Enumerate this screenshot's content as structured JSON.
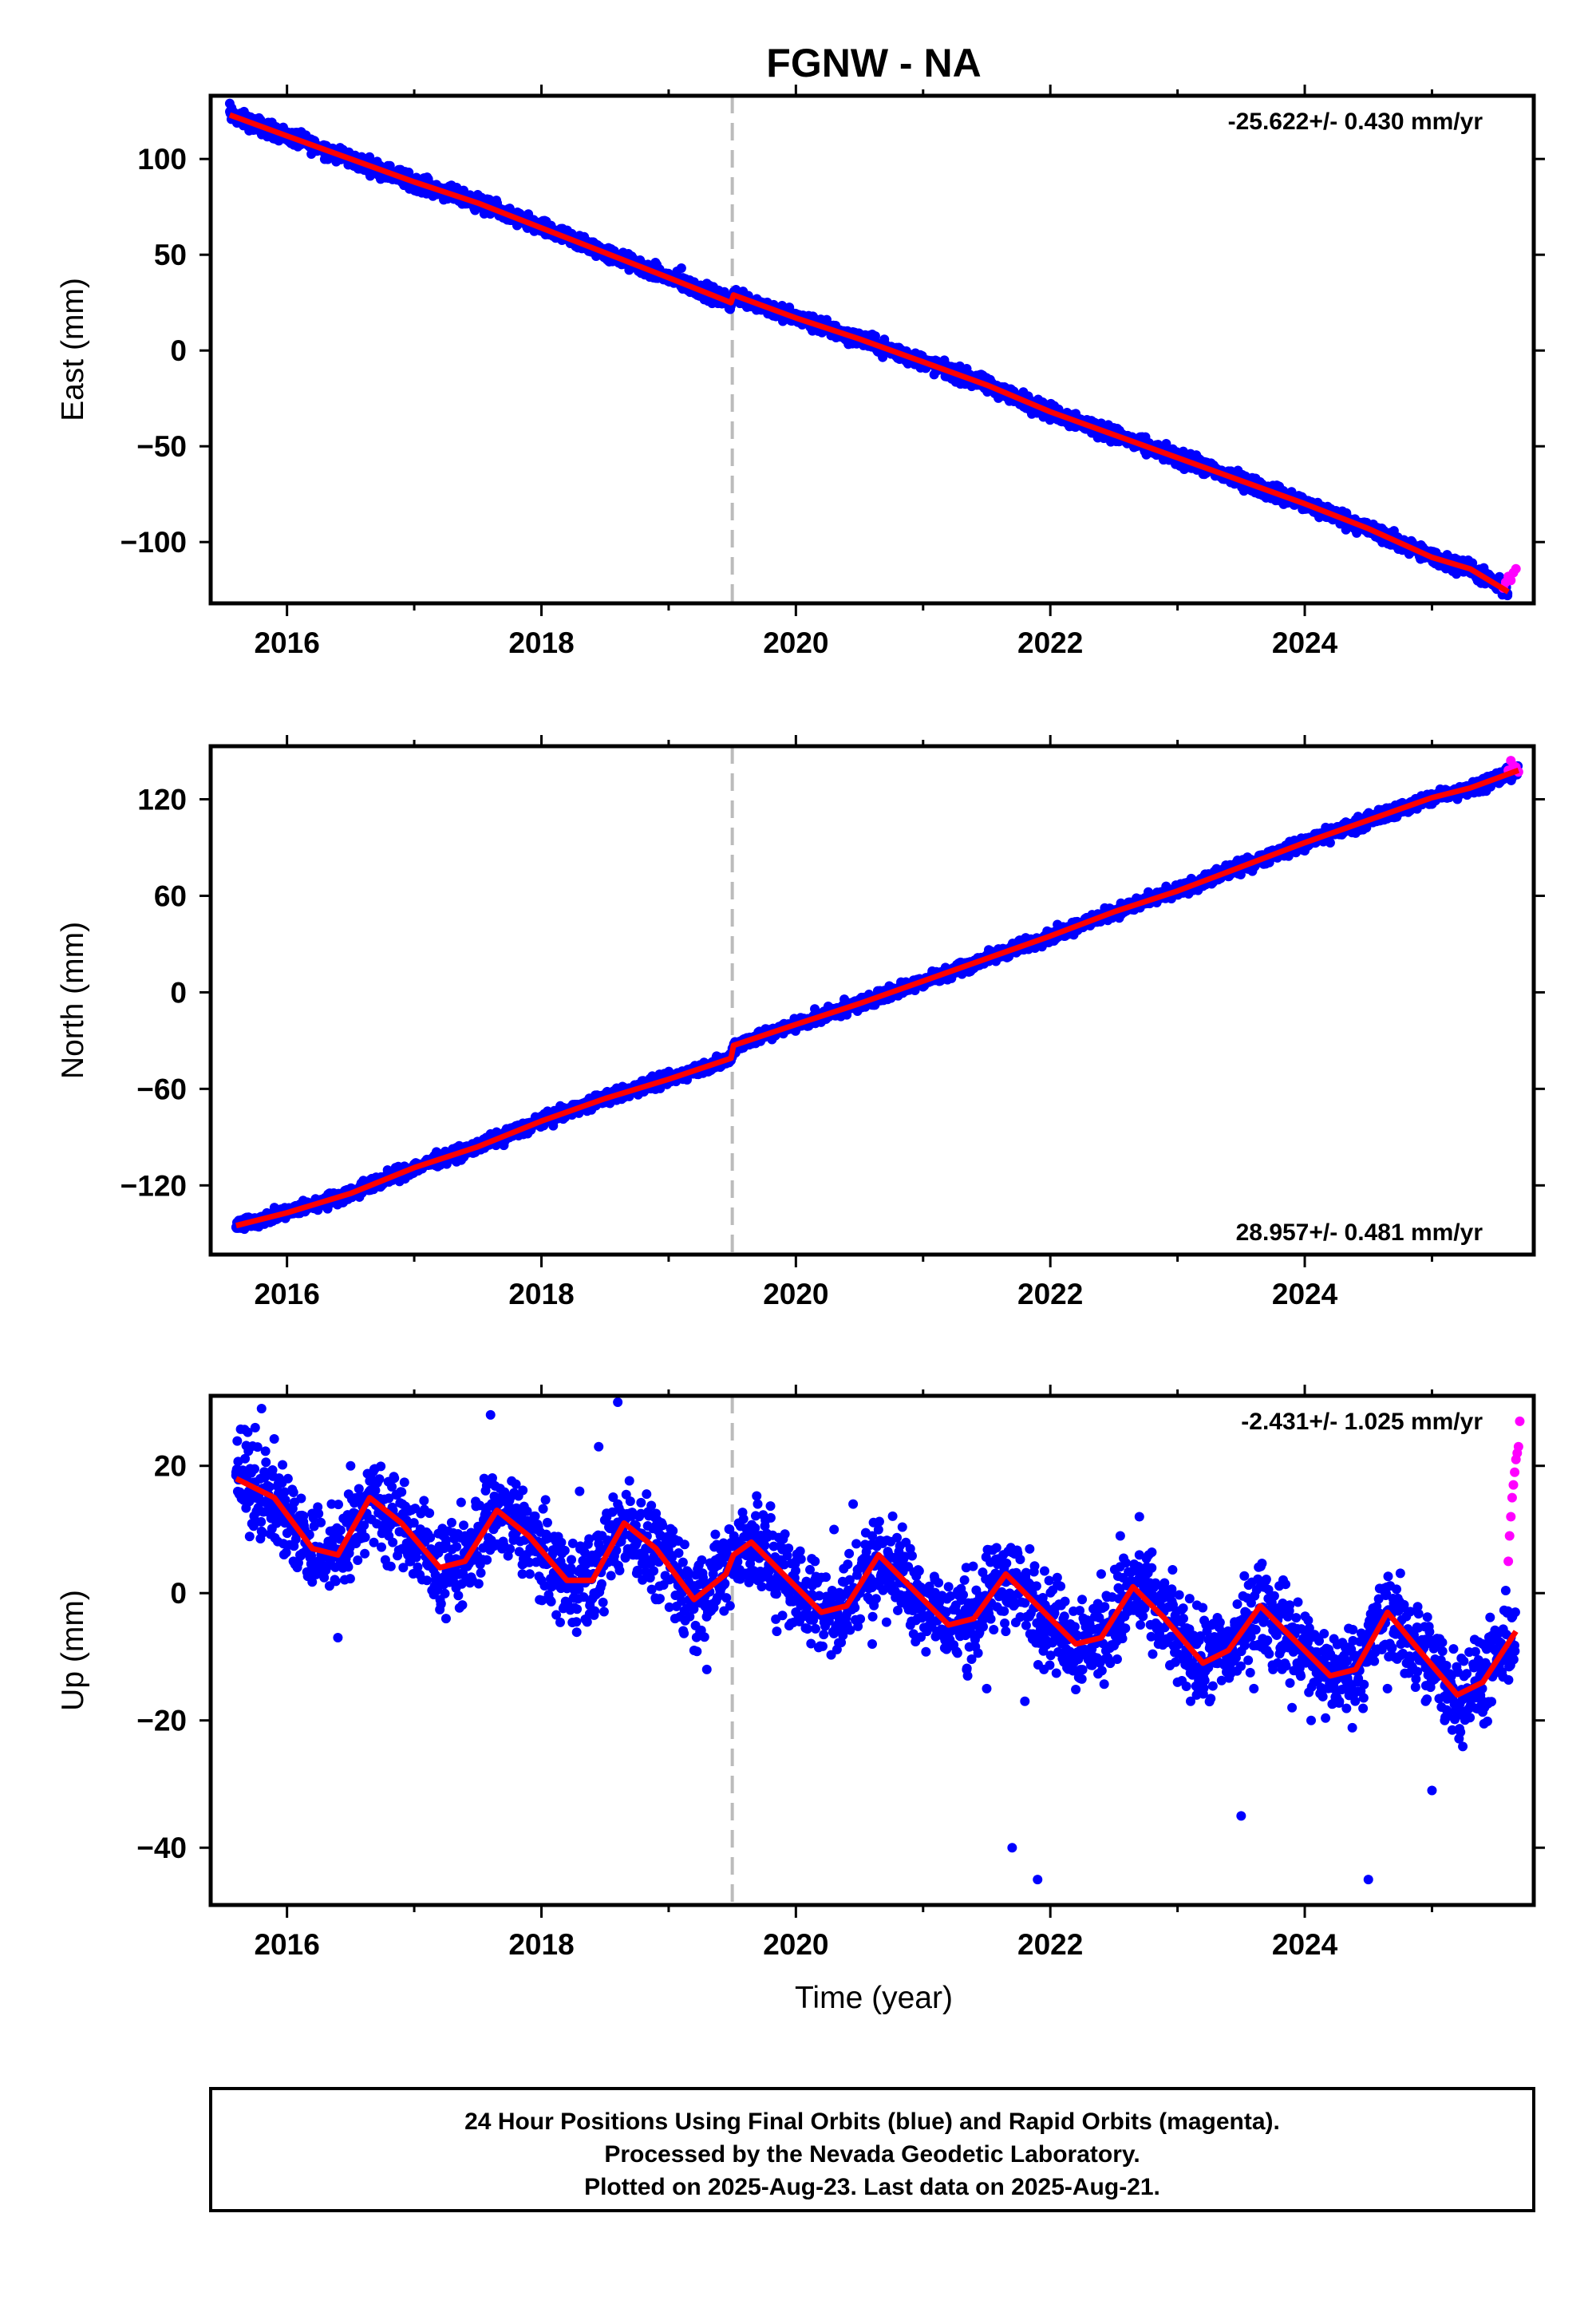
{
  "figure": {
    "title": "FGNW - NA",
    "footer_lines": [
      "24 Hour Positions Using Final Orbits (blue) and Rapid Orbits (magenta).",
      "Processed by the Nevada Geodetic Laboratory.",
      "Plotted on 2025-Aug-23. Last data on 2025-Aug-21."
    ],
    "colors": {
      "final_orbit_points": "#0000ff",
      "rapid_orbit_points": "#ff00ff",
      "model_fit": "#ff0000",
      "event_line": "#bbbbbb"
    }
  },
  "chart_data": [
    {
      "type": "scatter",
      "panel": "east",
      "ylabel": "East (mm)",
      "xlabel": "",
      "xlim": [
        2015.4,
        2025.8
      ],
      "ylim": [
        -132,
        133
      ],
      "xticks": [
        2016,
        2018,
        2020,
        2022,
        2024
      ],
      "yticks": [
        100,
        50,
        0,
        -50,
        -100
      ],
      "ytick_labels": [
        "100",
        "50",
        "0",
        "−50",
        "−100"
      ],
      "rate_text": "-25.622+/- 0.430 mm/yr",
      "rate_position": "top-right",
      "event_line_x": 2019.5,
      "series": [
        {
          "role": "final",
          "x": [
            2015.55,
            2015.7,
            2015.9,
            2016.1,
            2016.3,
            2016.5,
            2016.7,
            2016.9,
            2017.1,
            2017.3,
            2017.5,
            2017.7,
            2017.9,
            2018.1,
            2018.3,
            2018.5,
            2018.7,
            2018.9,
            2019.1,
            2019.3,
            2019.45,
            2019.6,
            2019.8,
            2020.0,
            2020.2,
            2020.4,
            2020.6,
            2020.8,
            2021.0,
            2021.2,
            2021.4,
            2021.6,
            2021.8,
            2022.0,
            2022.2,
            2022.4,
            2022.6,
            2022.8,
            2023.0,
            2023.2,
            2023.4,
            2023.6,
            2023.8,
            2024.0,
            2024.2,
            2024.4,
            2024.6,
            2024.8,
            2025.0,
            2025.2,
            2025.4,
            2025.55
          ],
          "y": [
            129,
            116,
            114,
            110,
            104,
            100,
            95,
            89,
            87,
            82,
            76,
            73,
            69,
            63,
            60,
            53,
            48,
            45,
            43,
            35,
            26,
            24,
            19,
            17,
            14,
            9,
            3,
            -4,
            -5,
            -10,
            -14,
            -23,
            -29,
            -31,
            -33,
            -38,
            -46,
            -52,
            -55,
            -58,
            -63,
            -70,
            -76,
            -81,
            -83,
            -89,
            -96,
            -102,
            -105,
            -113,
            -117,
            -122
          ]
        },
        {
          "role": "rapid",
          "x": [
            2025.56,
            2025.58,
            2025.6,
            2025.62,
            2025.64,
            2025.66
          ],
          "y": [
            -124,
            -121,
            -118,
            -120,
            -116,
            -114
          ]
        },
        {
          "role": "model",
          "x": [
            2015.55,
            2016.0,
            2016.5,
            2017.0,
            2017.5,
            2018.0,
            2018.5,
            2019.0,
            2019.49,
            2019.51,
            2020.0,
            2020.5,
            2021.0,
            2021.5,
            2022.0,
            2022.5,
            2023.0,
            2023.5,
            2024.0,
            2024.5,
            2025.0,
            2025.3,
            2025.6
          ],
          "y": [
            123,
            112,
            100,
            88,
            77,
            64,
            51,
            38,
            25,
            29,
            17,
            6,
            -6,
            -18,
            -32,
            -44,
            -56,
            -68,
            -80,
            -93,
            -108,
            -114,
            -126
          ]
        }
      ]
    },
    {
      "type": "scatter",
      "panel": "north",
      "ylabel": "North (mm)",
      "xlabel": "",
      "xlim": [
        2015.4,
        2025.8
      ],
      "ylim": [
        -163,
        153
      ],
      "xticks": [
        2016,
        2018,
        2020,
        2022,
        2024
      ],
      "yticks": [
        120,
        60,
        0,
        -60,
        -120
      ],
      "ytick_labels": [
        "120",
        "60",
        "0",
        "−60",
        "−120"
      ],
      "rate_text": "28.957+/- 0.481 mm/yr",
      "rate_position": "bottom-right",
      "event_line_x": 2019.5,
      "series": [
        {
          "role": "final",
          "x": [
            2015.6,
            2015.8,
            2016.0,
            2016.2,
            2016.4,
            2016.6,
            2016.8,
            2017.0,
            2017.2,
            2017.4,
            2017.6,
            2017.8,
            2018.0,
            2018.2,
            2018.4,
            2018.6,
            2018.8,
            2019.0,
            2019.2,
            2019.4,
            2019.6,
            2019.8,
            2020.0,
            2020.2,
            2020.4,
            2020.6,
            2020.8,
            2021.0,
            2021.2,
            2021.4,
            2021.6,
            2021.8,
            2022.0,
            2022.2,
            2022.4,
            2022.6,
            2022.8,
            2023.0,
            2023.2,
            2023.4,
            2023.6,
            2023.8,
            2024.0,
            2024.2,
            2024.4,
            2024.6,
            2024.8,
            2025.0,
            2025.2,
            2025.4,
            2025.55
          ],
          "y": [
            -146,
            -142,
            -138,
            -133,
            -128,
            -117,
            -112,
            -110,
            -104,
            -96,
            -88,
            -83,
            -77,
            -73,
            -67,
            -60,
            -55,
            -52,
            -48,
            -43,
            -33,
            -28,
            -22,
            -18,
            -14,
            -5,
            -2,
            5,
            9,
            15,
            24,
            29,
            35,
            40,
            45,
            53,
            58,
            62,
            66,
            72,
            81,
            85,
            88,
            93,
            99,
            107,
            113,
            117,
            120,
            127,
            132
          ]
        },
        {
          "role": "rapid",
          "x": [
            2025.6,
            2025.62,
            2025.64,
            2025.66,
            2025.68
          ],
          "y": [
            138,
            144,
            141,
            140,
            137
          ]
        },
        {
          "role": "model",
          "x": [
            2015.6,
            2016.0,
            2016.5,
            2017.0,
            2017.5,
            2018.0,
            2018.5,
            2019.0,
            2019.49,
            2019.51,
            2020.0,
            2020.5,
            2021.0,
            2021.5,
            2022.0,
            2022.5,
            2023.0,
            2023.5,
            2024.0,
            2024.5,
            2025.0,
            2025.3,
            2025.68
          ],
          "y": [
            -145,
            -137,
            -125,
            -109,
            -96,
            -80,
            -66,
            -54,
            -41,
            -33,
            -20,
            -7,
            7,
            21,
            35,
            50,
            63,
            78,
            93,
            107,
            121,
            127,
            138
          ]
        }
      ]
    },
    {
      "type": "scatter",
      "panel": "up",
      "ylabel": "Up (mm)",
      "xlabel": "Time (year)",
      "xlim": [
        2015.4,
        2025.8
      ],
      "ylim": [
        -49,
        31
      ],
      "xticks": [
        2016,
        2018,
        2020,
        2022,
        2024
      ],
      "yticks": [
        20,
        0,
        -20,
        -40
      ],
      "ytick_labels": [
        "20",
        "0",
        "−20",
        "−40"
      ],
      "rate_text": "-2.431+/- 1.025 mm/yr",
      "rate_position": "top-right",
      "event_line_x": 2019.5,
      "series": [
        {
          "role": "final",
          "x": [
            2015.6,
            2015.75,
            2015.9,
            2016.05,
            2016.2,
            2016.35,
            2016.5,
            2016.65,
            2016.8,
            2016.95,
            2017.1,
            2017.25,
            2017.4,
            2017.55,
            2017.7,
            2017.85,
            2018.0,
            2018.15,
            2018.3,
            2018.45,
            2018.6,
            2018.75,
            2018.9,
            2019.05,
            2019.2,
            2019.35,
            2019.55,
            2019.7,
            2019.85,
            2020.0,
            2020.15,
            2020.3,
            2020.45,
            2020.6,
            2020.75,
            2020.9,
            2021.05,
            2021.2,
            2021.35,
            2021.5,
            2021.65,
            2021.8,
            2021.95,
            2022.1,
            2022.25,
            2022.4,
            2022.55,
            2022.7,
            2022.85,
            2023.0,
            2023.15,
            2023.3,
            2023.45,
            2023.6,
            2023.75,
            2023.9,
            2024.05,
            2024.2,
            2024.35,
            2024.5,
            2024.65,
            2024.8,
            2024.95,
            2025.1,
            2025.25,
            2025.4,
            2025.55,
            2015.8,
            2016.4,
            2017.6,
            2018.6,
            2019.3,
            2019.7,
            2020.6,
            2021.7,
            2021.9,
            2022.7,
            2023.5,
            2024.5,
            2025.0
          ],
          "y": [
            19,
            26,
            13,
            5,
            7,
            14,
            20,
            15,
            9,
            6,
            2,
            -4,
            9,
            18,
            12,
            3,
            2,
            8,
            16,
            23,
            14,
            6,
            -1,
            -4,
            -9,
            3,
            11,
            2,
            -6,
            -3,
            5,
            10,
            14,
            9,
            3,
            -5,
            -2,
            1,
            -13,
            -15,
            -6,
            -17,
            -12,
            -5,
            -1,
            3,
            9,
            6,
            -8,
            -14,
            -16,
            -11,
            -5,
            -15,
            -12,
            -18,
            -20,
            -13,
            -9,
            -5,
            -15,
            -11,
            -17,
            -20,
            -19,
            -8,
            -10,
            29,
            -7,
            28,
            30,
            -12,
            14,
            -8,
            -40,
            -45,
            12,
            -35,
            -45,
            -31
          ]
        },
        {
          "role": "rapid",
          "x": [
            2025.6,
            2025.61,
            2025.62,
            2025.63,
            2025.64,
            2025.65,
            2025.66,
            2025.67,
            2025.68,
            2025.69
          ],
          "y": [
            5,
            9,
            12,
            15,
            17,
            19,
            21,
            22,
            23,
            27
          ]
        },
        {
          "role": "model",
          "x": [
            2015.6,
            2015.9,
            2016.2,
            2016.4,
            2016.65,
            2016.9,
            2017.2,
            2017.4,
            2017.65,
            2017.9,
            2018.2,
            2018.4,
            2018.65,
            2018.9,
            2019.2,
            2019.45,
            2019.51,
            2019.65,
            2019.9,
            2020.2,
            2020.4,
            2020.65,
            2020.9,
            2021.2,
            2021.4,
            2021.65,
            2021.9,
            2022.2,
            2022.4,
            2022.65,
            2022.9,
            2023.2,
            2023.4,
            2023.65,
            2023.9,
            2024.2,
            2024.4,
            2024.65,
            2024.9,
            2025.2,
            2025.4,
            2025.66
          ],
          "y": [
            18,
            15,
            7,
            6,
            15,
            11,
            4,
            5,
            13,
            9,
            2,
            2,
            11,
            7,
            -1,
            3,
            6,
            8,
            3,
            -3,
            -2,
            6,
            1,
            -5,
            -4,
            3,
            -2,
            -8,
            -7,
            1,
            -4,
            -11,
            -9,
            -2,
            -7,
            -13,
            -12,
            -3,
            -9,
            -16,
            -14,
            -6
          ]
        }
      ]
    }
  ]
}
